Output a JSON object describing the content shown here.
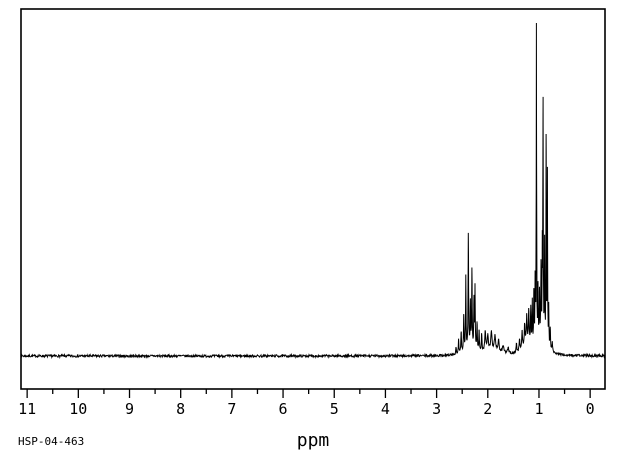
{
  "window": {
    "background_color": "#ffffff",
    "foreground_color": "#000000"
  },
  "footer": {
    "sample_id": "HSP-04-463"
  },
  "chart_data": {
    "type": "line",
    "description": "1H NMR spectrum trace, intensity vs chemical shift",
    "xlabel": "ppm",
    "xlim": [
      11.12,
      -0.29
    ],
    "ylim": [
      0,
      1
    ],
    "x_major_ticks": [
      11,
      10,
      9,
      8,
      7,
      6,
      5,
      4,
      3,
      2,
      1,
      0
    ],
    "x_minor_tick_step": 0.5,
    "grid": false,
    "legend": "none",
    "line_color": "#000000",
    "baseline": 0,
    "noise_amplitude": 0.0035,
    "peaks_columns": [
      "ppm",
      "relative_intensity",
      "half_width_ppm"
    ],
    "peaks": [
      [
        2.35,
        0.03,
        0.1
      ],
      [
        1.9,
        0.018,
        0.15
      ],
      [
        1.22,
        0.035,
        0.1
      ],
      [
        0.95,
        0.05,
        0.09
      ],
      [
        2.62,
        0.02,
        0.006
      ],
      [
        2.57,
        0.04,
        0.006
      ],
      [
        2.52,
        0.06,
        0.006
      ],
      [
        2.47,
        0.1,
        0.006
      ],
      [
        2.43,
        0.21,
        0.005
      ],
      [
        2.38,
        0.32,
        0.005
      ],
      [
        2.34,
        0.12,
        0.005
      ],
      [
        2.31,
        0.22,
        0.005
      ],
      [
        2.27,
        0.14,
        0.005
      ],
      [
        2.25,
        0.18,
        0.005
      ],
      [
        2.21,
        0.08,
        0.006
      ],
      [
        2.17,
        0.06,
        0.006
      ],
      [
        2.12,
        0.05,
        0.007
      ],
      [
        2.05,
        0.055,
        0.012
      ],
      [
        2.0,
        0.045,
        0.012
      ],
      [
        1.93,
        0.05,
        0.012
      ],
      [
        1.86,
        0.04,
        0.012
      ],
      [
        1.79,
        0.03,
        0.012
      ],
      [
        1.7,
        0.02,
        0.015
      ],
      [
        1.6,
        0.015,
        0.015
      ],
      [
        1.44,
        0.025,
        0.008
      ],
      [
        1.38,
        0.035,
        0.008
      ],
      [
        1.33,
        0.05,
        0.008
      ],
      [
        1.28,
        0.06,
        0.008
      ],
      [
        1.24,
        0.075,
        0.008
      ],
      [
        1.2,
        0.09,
        0.007
      ],
      [
        1.16,
        0.105,
        0.006
      ],
      [
        1.13,
        0.12,
        0.005
      ],
      [
        1.1,
        0.15,
        0.005
      ],
      [
        1.075,
        0.18,
        0.005
      ],
      [
        1.05,
        0.91,
        0.004
      ],
      [
        1.02,
        0.15,
        0.005
      ],
      [
        0.99,
        0.13,
        0.005
      ],
      [
        0.96,
        0.2,
        0.005
      ],
      [
        0.935,
        0.25,
        0.004
      ],
      [
        0.92,
        0.67,
        0.004
      ],
      [
        0.89,
        0.28,
        0.004
      ],
      [
        0.86,
        0.59,
        0.004
      ],
      [
        0.835,
        0.5,
        0.004
      ],
      [
        0.81,
        0.12,
        0.005
      ],
      [
        0.78,
        0.06,
        0.006
      ],
      [
        0.74,
        0.025,
        0.008
      ]
    ]
  }
}
